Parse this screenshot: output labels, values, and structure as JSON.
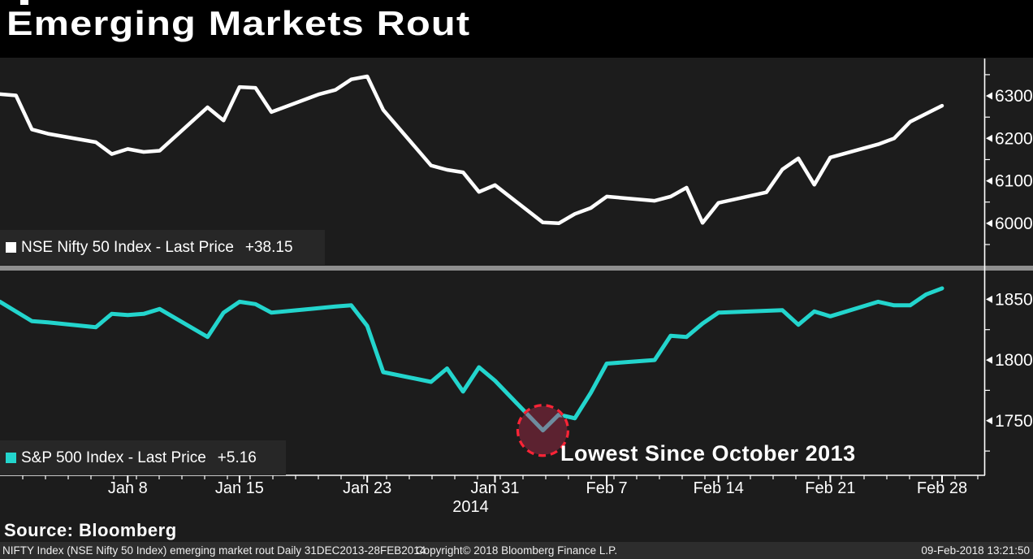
{
  "title": "Emerging Markets Rout",
  "source_line": "Source: Bloomberg",
  "annotation": {
    "text": "Lowest Since October 2013"
  },
  "status_bar": {
    "left": "NIFTY Index (NSE Nifty 50 Index) emerging market rout  Daily 31DEC2013-28FEB2014",
    "center": "Copyright© 2018 Bloomberg Finance L.P.",
    "right": "09-Feb-2018 13:21:50"
  },
  "colors": {
    "background": "#1c1c1c",
    "title_band": "#000000",
    "axis": "#ffffff",
    "separator": "#8f8f8f",
    "nifty_line": "#ffffff",
    "spx_line": "#23d5cd",
    "legend_strip": "#272727",
    "status_bar_bg": "#2d2d2d",
    "circle_fill": "#5c2230",
    "circle_border": "#fb2436",
    "circle_inner_line": "#6e8c9e"
  },
  "x_axis": {
    "range_days": 59,
    "ticks": [
      {
        "day_offset": 8,
        "label": "Jan 8"
      },
      {
        "day_offset": 15,
        "label": "Jan 15"
      },
      {
        "day_offset": 23,
        "label": "Jan 23"
      },
      {
        "day_offset": 31,
        "label": "Jan 31"
      },
      {
        "day_offset": 38,
        "label": "Feb 7"
      },
      {
        "day_offset": 45,
        "label": "Feb 14"
      },
      {
        "day_offset": 52,
        "label": "Feb 21"
      },
      {
        "day_offset": 59,
        "label": "Feb 28"
      }
    ],
    "year_label": "2014",
    "year_under_day_offset": 31
  },
  "chart_data": [
    {
      "type": "line",
      "name": "NSE Nifty 50 Index",
      "legend_label": "NSE Nifty 50 Index - Last Price",
      "change": "+38.15",
      "line_color": "#ffffff",
      "panel": "top",
      "ylim": [
        5904,
        6390
      ],
      "yticks_major": [
        6000,
        6100,
        6200,
        6300
      ],
      "yticks_minor": [
        5950,
        6050,
        6150,
        6250,
        6350
      ],
      "x_day_offsets": [
        0,
        1,
        2,
        3,
        6,
        7,
        8,
        9,
        10,
        13,
        14,
        15,
        16,
        17,
        20,
        21,
        22,
        23,
        24,
        27,
        28,
        29,
        30,
        31,
        34,
        35,
        36,
        37,
        38,
        41,
        42,
        43,
        44,
        45,
        48,
        49,
        50,
        51,
        52,
        55,
        56,
        57,
        59
      ],
      "values": [
        6304,
        6301,
        6221,
        6211,
        6191,
        6163,
        6175,
        6168,
        6171,
        6273,
        6242,
        6321,
        6319,
        6262,
        6304,
        6314,
        6339,
        6346,
        6267,
        6136,
        6126,
        6120,
        6074,
        6090,
        6002,
        6000,
        6022,
        6036,
        6063,
        6053,
        6063,
        6084,
        6001,
        6048,
        6073,
        6127,
        6153,
        6091,
        6155,
        6186,
        6200,
        6239,
        6277
      ]
    },
    {
      "type": "line",
      "name": "S&P 500 Index",
      "legend_label": "S&P 500 Index - Last Price",
      "change": "+5.16",
      "line_color": "#23d5cd",
      "panel": "bottom",
      "ylim": [
        1705,
        1873
      ],
      "yticks_major": [
        1750,
        1800,
        1850
      ],
      "yticks_minor": [
        1725,
        1775,
        1825
      ],
      "x_day_offsets": [
        0,
        2,
        3,
        6,
        7,
        8,
        9,
        10,
        13,
        14,
        15,
        16,
        17,
        21,
        22,
        23,
        24,
        27,
        28,
        29,
        30,
        31,
        34,
        35,
        36,
        37,
        38,
        41,
        42,
        43,
        44,
        45,
        49,
        50,
        51,
        52,
        55,
        56,
        57,
        58,
        59
      ],
      "values": [
        1848,
        1832,
        1831,
        1827,
        1838,
        1837,
        1838,
        1842,
        1819,
        1839,
        1848,
        1846,
        1839,
        1844,
        1845,
        1828,
        1790,
        1782,
        1793,
        1774,
        1794,
        1783,
        1742,
        1755,
        1752,
        1773,
        1797,
        1800,
        1820,
        1819,
        1830,
        1839,
        1841,
        1829,
        1840,
        1836,
        1848,
        1845,
        1845,
        1854,
        1859
      ],
      "annotation_circle": {
        "day_offset": 34,
        "value": 1742,
        "radius": 31
      }
    }
  ]
}
